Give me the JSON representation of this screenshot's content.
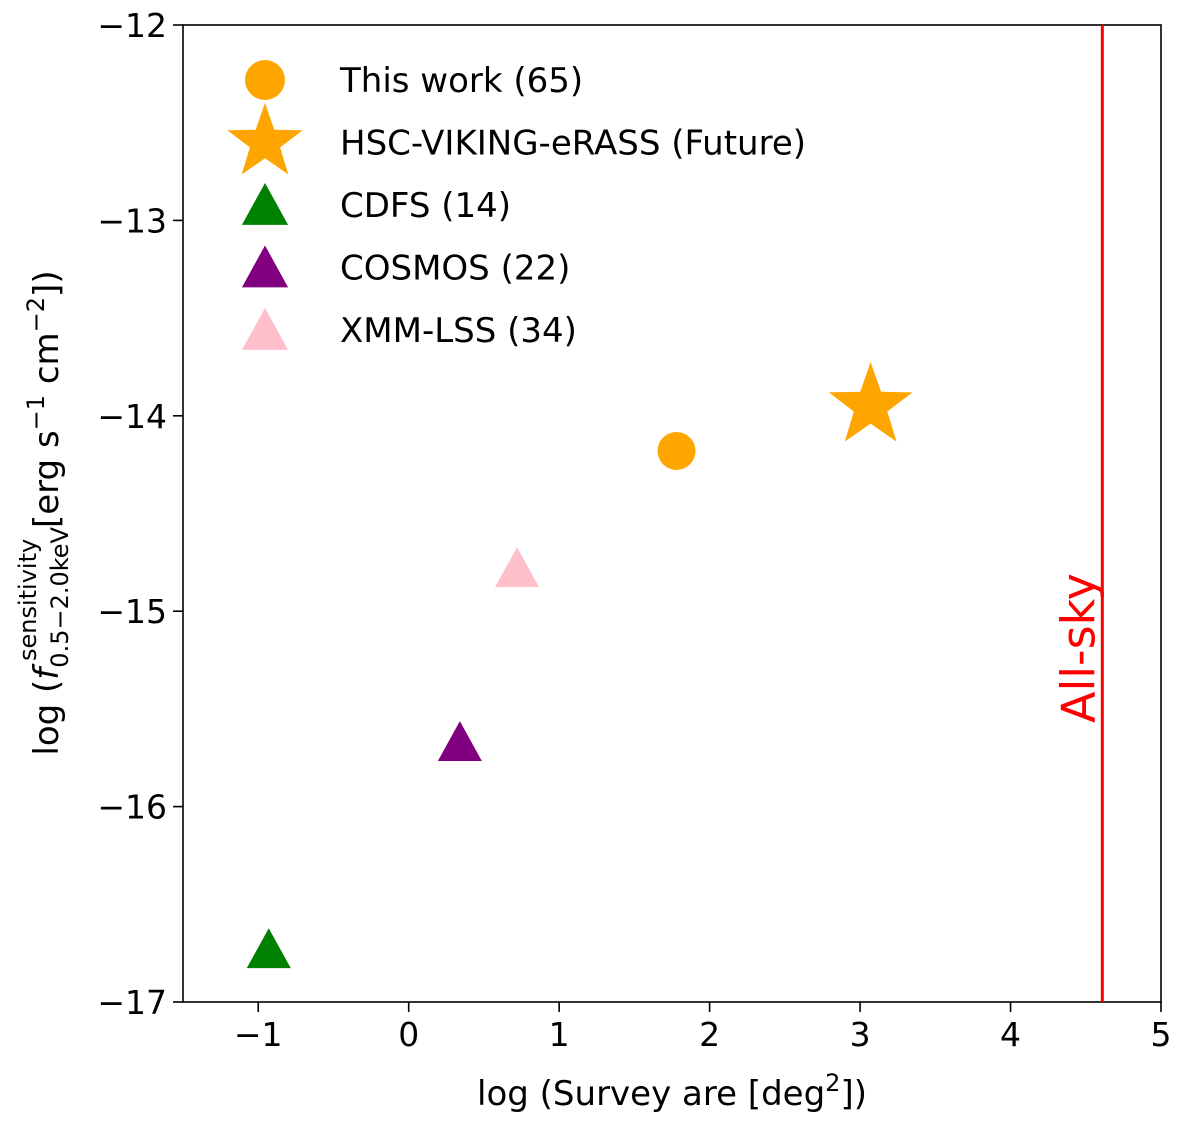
{
  "chart_data": {
    "type": "scatter",
    "xlabel_parts": {
      "prefix": "log (Survey are [deg",
      "sup": "2",
      "suffix": "])"
    },
    "ylabel_parts": {
      "prefix": "log (",
      "f": "f",
      "sup": "sensitivity",
      "sub": "0.5−2.0keV",
      "unit": " [erg s",
      "unit_sup1": "−1",
      "unit_mid": " cm",
      "unit_sup2": "−2",
      "suffix": "])"
    },
    "xlim": [
      -1.5,
      5
    ],
    "ylim": [
      -17,
      -12
    ],
    "xticks": [
      -1,
      0,
      1,
      2,
      3,
      4,
      5
    ],
    "xtick_labels": [
      "−1",
      "0",
      "1",
      "2",
      "3",
      "4",
      "5"
    ],
    "yticks": [
      -17,
      -16,
      -15,
      -14,
      -13,
      -12
    ],
    "ytick_labels": [
      "−17",
      "−16",
      "−15",
      "−14",
      "−13",
      "−12"
    ],
    "series": [
      {
        "name": "This work (65)",
        "marker": "circle",
        "color": "#ffa500",
        "x": 1.78,
        "y": -14.18
      },
      {
        "name": "HSC-VIKING-eRASS (Future)",
        "marker": "star",
        "color": "#ffa500",
        "x": 3.07,
        "y": -13.95
      },
      {
        "name": "CDFS (14)",
        "marker": "triangle",
        "color": "#008000",
        "x": -0.93,
        "y": -16.73
      },
      {
        "name": "COSMOS (22)",
        "marker": "triangle",
        "color": "#800080",
        "x": 0.34,
        "y": -15.67
      },
      {
        "name": "XMM-LSS (34)",
        "marker": "triangle",
        "color": "#ffc0cb",
        "x": 0.72,
        "y": -14.78
      }
    ],
    "vline": {
      "x": 4.61,
      "color": "#ff0000",
      "label": "All-sky"
    },
    "legend_position": "upper-left"
  }
}
